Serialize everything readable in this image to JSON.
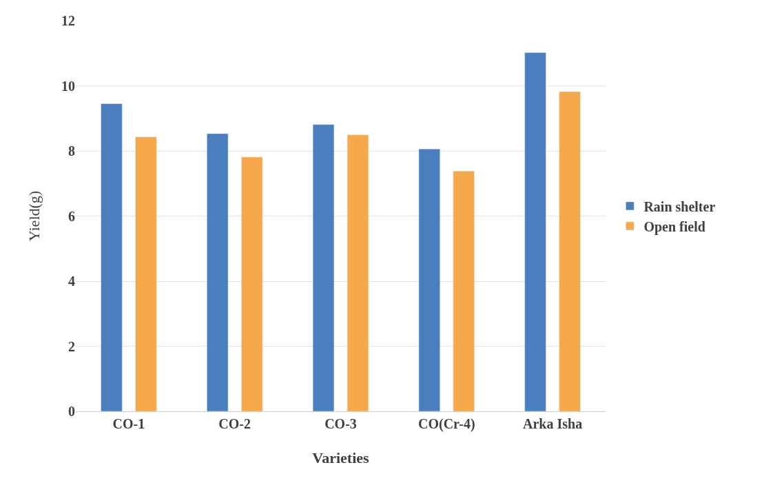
{
  "chart_data": {
    "type": "bar",
    "xlabel": "Varieties",
    "ylabel": "Yield(g)",
    "categories": [
      "CO-1",
      "CO-2",
      "CO-3",
      "CO(Cr-4)",
      "Arka Isha"
    ],
    "series": [
      {
        "name": "Rain shelter",
        "color": "#4a7ebf",
        "values": [
          9.45,
          8.53,
          8.81,
          8.06,
          11.02
        ]
      },
      {
        "name": "Open field",
        "color": "#f5a94a",
        "values": [
          8.43,
          7.81,
          8.49,
          7.38,
          9.82
        ]
      }
    ],
    "ylim": [
      0,
      12
    ],
    "yticks": [
      0,
      2,
      4,
      6,
      8,
      10,
      12
    ],
    "grid": "y",
    "legend": "right"
  }
}
